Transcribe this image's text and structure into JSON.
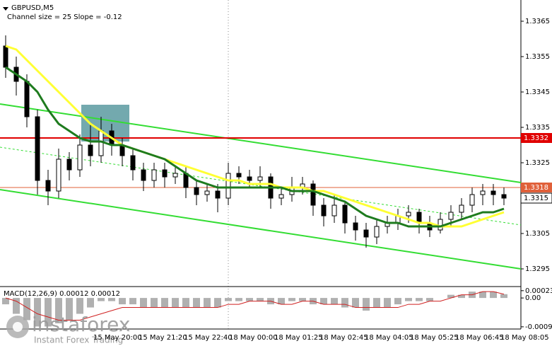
{
  "chart_data": [
    {
      "type": "candlestick",
      "title": "GBPUSD,M5",
      "subtitle": "Channel size = 25 Slope = -0.12",
      "open": [
        1.3358,
        1.3352,
        1.3348,
        1.3338,
        1.332,
        1.3317,
        1.3326,
        1.3323,
        1.333,
        1.3327,
        1.3334,
        1.333,
        1.3327,
        1.3323,
        1.332,
        1.3323,
        1.3321,
        1.3322,
        1.3318,
        1.3316,
        1.3317,
        1.3315,
        1.3322,
        1.3321,
        1.332,
        1.3321,
        1.3315,
        1.3316,
        1.3318,
        1.3319,
        1.3313,
        1.331,
        1.3313,
        1.3308,
        1.3306,
        1.3304,
        1.3307,
        1.3308,
        1.331,
        1.3311,
        1.3308,
        1.3306,
        1.3309,
        1.3311,
        1.3313,
        1.3316,
        1.3317,
        1.3316
      ],
      "high": [
        1.3361,
        1.3355,
        1.335,
        1.334,
        1.3323,
        1.3329,
        1.3328,
        1.3333,
        1.3336,
        1.3338,
        1.3336,
        1.3332,
        1.3329,
        1.3325,
        1.3325,
        1.3325,
        1.3324,
        1.3324,
        1.332,
        1.3319,
        1.3319,
        1.3325,
        1.3324,
        1.3323,
        1.3324,
        1.3322,
        1.3318,
        1.3321,
        1.3321,
        1.332,
        1.3315,
        1.3316,
        1.3314,
        1.331,
        1.3308,
        1.3309,
        1.331,
        1.3312,
        1.3313,
        1.3312,
        1.331,
        1.3311,
        1.3313,
        1.3315,
        1.3318,
        1.3319,
        1.3319,
        1.3318
      ],
      "low": [
        1.3349,
        1.3344,
        1.3335,
        1.3316,
        1.3313,
        1.3315,
        1.332,
        1.3321,
        1.3324,
        1.3325,
        1.3327,
        1.3324,
        1.332,
        1.3317,
        1.3318,
        1.3318,
        1.3319,
        1.3315,
        1.3313,
        1.3314,
        1.3311,
        1.3313,
        1.3319,
        1.3318,
        1.3318,
        1.3312,
        1.3313,
        1.3314,
        1.3316,
        1.331,
        1.3307,
        1.3308,
        1.3305,
        1.3303,
        1.3301,
        1.3302,
        1.3305,
        1.3306,
        1.3308,
        1.3305,
        1.3304,
        1.3305,
        1.3307,
        1.3309,
        1.3311,
        1.3313,
        1.3313,
        1.3313
      ],
      "close": [
        1.3352,
        1.3348,
        1.3338,
        1.332,
        1.3317,
        1.3326,
        1.3323,
        1.333,
        1.3327,
        1.3334,
        1.333,
        1.3327,
        1.3323,
        1.332,
        1.3323,
        1.3321,
        1.3322,
        1.3318,
        1.3316,
        1.3317,
        1.3315,
        1.3322,
        1.3321,
        1.332,
        1.3321,
        1.3315,
        1.3316,
        1.3318,
        1.3319,
        1.3313,
        1.331,
        1.3313,
        1.3308,
        1.3306,
        1.3304,
        1.3307,
        1.3308,
        1.331,
        1.3311,
        1.3308,
        1.3306,
        1.3309,
        1.3311,
        1.3313,
        1.3316,
        1.3317,
        1.3316,
        1.3315
      ],
      "series": [
        {
          "color": "#ffff33",
          "values": [
            1.3358,
            1.3357,
            1.3354,
            1.3351,
            1.3348,
            1.3345,
            1.3342,
            1.3339,
            1.3336,
            1.3334,
            1.3332,
            1.333,
            1.3329,
            1.3328,
            1.3327,
            1.3326,
            1.3325,
            1.3324,
            1.3323,
            1.3322,
            1.3321,
            1.332,
            1.332,
            1.3319,
            1.3319,
            1.3319,
            1.3318,
            1.3318,
            1.3318,
            1.3317,
            1.3317,
            1.3316,
            1.3315,
            1.3314,
            1.3313,
            1.3312,
            1.3311,
            1.331,
            1.3309,
            1.3308,
            1.3308,
            1.3307,
            1.3307,
            1.3307,
            1.3308,
            1.3309,
            1.331,
            1.3311
          ]
        },
        {
          "color": "#1e7b1e",
          "values": [
            1.3352,
            1.335,
            1.3348,
            1.3345,
            1.334,
            1.3336,
            1.3334,
            1.3332,
            1.3331,
            1.3331,
            1.333,
            1.333,
            1.3329,
            1.3328,
            1.3327,
            1.3326,
            1.3324,
            1.3322,
            1.332,
            1.3319,
            1.3318,
            1.3318,
            1.3318,
            1.3318,
            1.3318,
            1.3318,
            1.3318,
            1.3317,
            1.3317,
            1.3317,
            1.3316,
            1.3315,
            1.3314,
            1.3312,
            1.331,
            1.3309,
            1.3308,
            1.3308,
            1.3307,
            1.3307,
            1.3307,
            1.3307,
            1.3308,
            1.3309,
            1.331,
            1.3311,
            1.3311,
            1.3312
          ]
        }
      ],
      "channel": [
        {
          "color": "#33dd33",
          "values": [
            1.33416,
            1.33194
          ]
        },
        {
          "color": "#33dd33",
          "values": [
            1.33174,
            1.3295
          ]
        },
        {
          "color": "#33dd33",
          "dashed": true,
          "values": [
            1.33294,
            1.33074
          ]
        }
      ],
      "levels": [
        {
          "value": 1.3332,
          "color": "#e00000"
        },
        {
          "value": 1.3318,
          "color": "#e0603a"
        }
      ],
      "current_price": 1.3315,
      "ylim": [
        1.329,
        1.3371
      ],
      "yticks": [
        1.3365,
        1.3355,
        1.3345,
        1.3335,
        1.3325,
        1.3305,
        1.3295
      ],
      "x_labels": [
        "15 May 20:00",
        "15 May 21:20",
        "15 May 22:40",
        "18 May 00:00",
        "18 May 01:25",
        "18 May 02:45",
        "18 May 04:05",
        "18 May 05:25",
        "18 May 06:45",
        "18 May 08:05"
      ]
    },
    {
      "type": "macd",
      "label": "MACD(12,26,9) 0.00012 0.00012",
      "values": [
        -0.0002,
        -0.0005,
        -0.0007,
        -0.0009,
        -0.0009,
        -0.0008,
        -0.0007,
        -0.0005,
        -0.0003,
        -0.0001,
        -0.0001,
        -0.0002,
        -0.0002,
        -0.0003,
        -0.0003,
        -0.0003,
        -0.0003,
        -0.0003,
        -0.0003,
        -0.0003,
        -0.0003,
        -0.0001,
        -0.0001,
        -0.0001,
        -0.0001,
        -0.0002,
        -0.0002,
        -0.0001,
        -0.0001,
        -0.0002,
        -0.0002,
        -0.0002,
        -0.0003,
        -0.0003,
        -0.0004,
        -0.0003,
        -0.0003,
        -0.0002,
        -0.0001,
        -0.0001,
        -0.0001,
        0,
        0.0001,
        0.0001,
        0.0002,
        0.0002,
        0.0002,
        0.00012
      ],
      "color": "#b0b0b0",
      "signal": {
        "color": "#d02020",
        "values": [
          0,
          -0.0001,
          -0.0003,
          -0.0005,
          -0.0006,
          -0.0007,
          -0.0007,
          -0.0007,
          -0.0006,
          -0.0005,
          -0.0004,
          -0.0003,
          -0.0003,
          -0.0003,
          -0.0003,
          -0.0003,
          -0.0003,
          -0.0003,
          -0.0003,
          -0.0003,
          -0.0003,
          -0.0002,
          -0.0002,
          -0.0001,
          -0.0001,
          -0.0001,
          -0.0002,
          -0.0002,
          -0.0001,
          -0.0001,
          -0.0002,
          -0.0002,
          -0.0002,
          -0.0003,
          -0.0003,
          -0.0003,
          -0.0003,
          -0.0003,
          -0.0002,
          -0.0002,
          -0.0001,
          -0.0001,
          0,
          0.0001,
          0.0001,
          0.0002,
          0.0002,
          0.00012
        ]
      },
      "ylim": [
        -0.00098,
        0.00036
      ],
      "yticks": [
        0.00023,
        {
          "value": 0,
          "label": "0.00"
        },
        -0.00091
      ]
    }
  ],
  "watermark": {
    "brand": "instaforex",
    "tagline": "Instant Forex Trading"
  }
}
